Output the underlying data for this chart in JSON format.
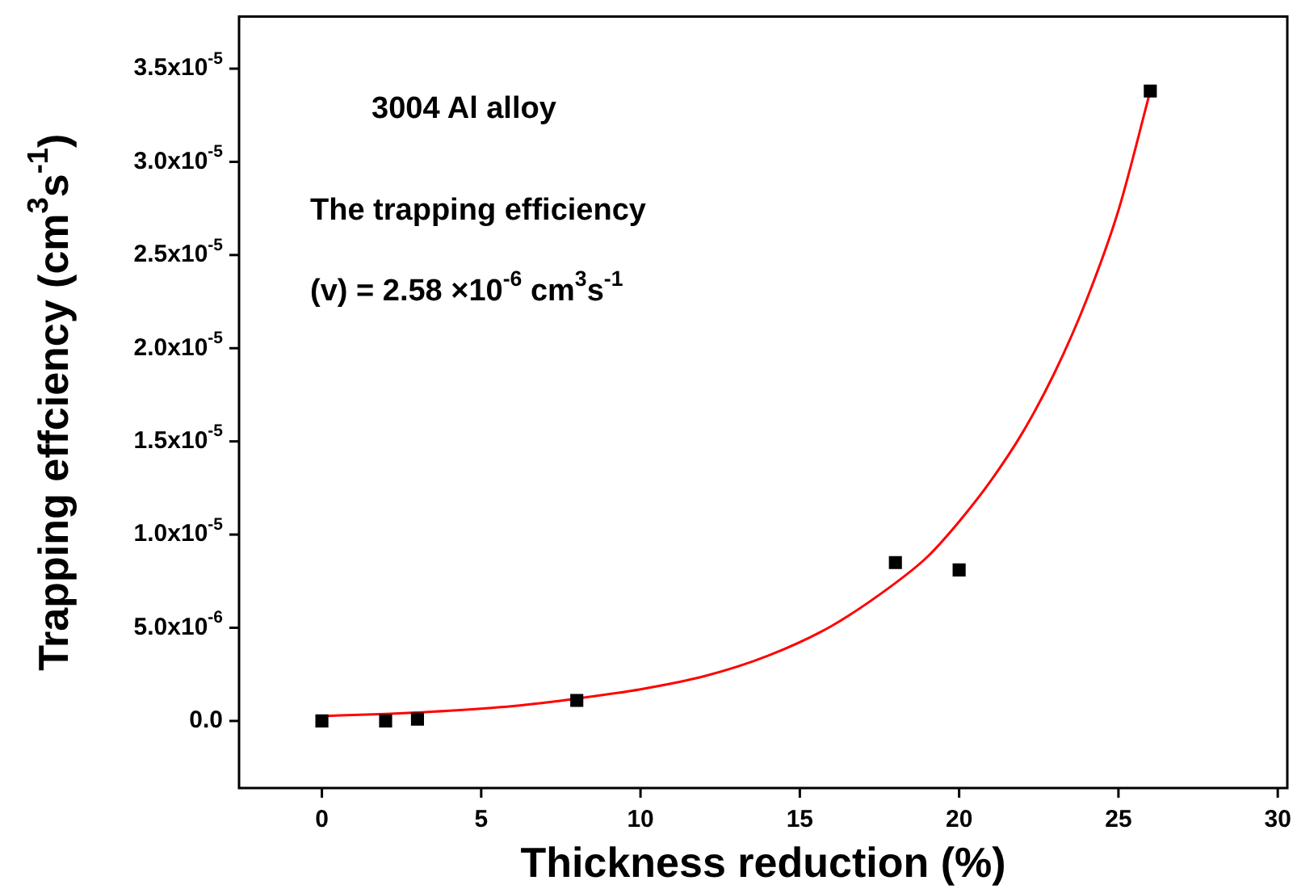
{
  "chart_data": {
    "type": "scatter",
    "xlabel": "Thickness reduction (%)",
    "ylabel": "Trapping effciency (cm$^{3}$s$^{-1}$)",
    "annotations": [
      "3004 Al alloy",
      "The trapping efficiency",
      "(v) = 2.58 ×10$^{-6}$ cm$^{3}$s$^{-1}$"
    ],
    "xlim": [
      -2.6,
      30.3
    ],
    "xticks": [
      0,
      5,
      10,
      15,
      20,
      25,
      30
    ],
    "ylim": [
      -3.6e-06,
      3.78e-05
    ],
    "yticks": [
      {
        "value": 0,
        "label": "0.0"
      },
      {
        "value": 5e-06,
        "label": "5.0x10$^{-6}$"
      },
      {
        "value": 1e-05,
        "label": "1.0x10$^{-5}$"
      },
      {
        "value": 1.5e-05,
        "label": "1.5x10$^{-5}$"
      },
      {
        "value": 2e-05,
        "label": "2.0x10$^{-5}$"
      },
      {
        "value": 2.5e-05,
        "label": "2.5x10$^{-5}$"
      },
      {
        "value": 3e-05,
        "label": "3.0x10$^{-5}$"
      },
      {
        "value": 3.5e-05,
        "label": "3.5x10$^{-5}$"
      }
    ],
    "grid": false,
    "legend": false,
    "series": [
      {
        "color": "#000000",
        "marker": "square",
        "x": [
          0,
          2,
          3,
          8,
          18,
          20,
          26
        ],
        "values": [
          0,
          0,
          1e-07,
          1.1e-06,
          8.5e-06,
          8.1e-06,
          3.38e-05
        ]
      },
      {
        "type": "line",
        "color": "#ff0000",
        "marker": "none",
        "line_style": "solid",
        "x": [
          0,
          2,
          4,
          6,
          8,
          10,
          12,
          14,
          16,
          18,
          19,
          20,
          21,
          22,
          23,
          24,
          25,
          26
        ],
        "values": [
          2.6e-07,
          3.8e-07,
          5.5e-07,
          8e-07,
          1.2e-06,
          1.7e-06,
          2.4e-06,
          3.5e-06,
          5.1e-06,
          7.4e-06,
          8.8e-06,
          1.07e-05,
          1.29e-05,
          1.55e-05,
          1.87e-05,
          2.26e-05,
          2.74e-05,
          3.38e-05
        ]
      }
    ]
  }
}
